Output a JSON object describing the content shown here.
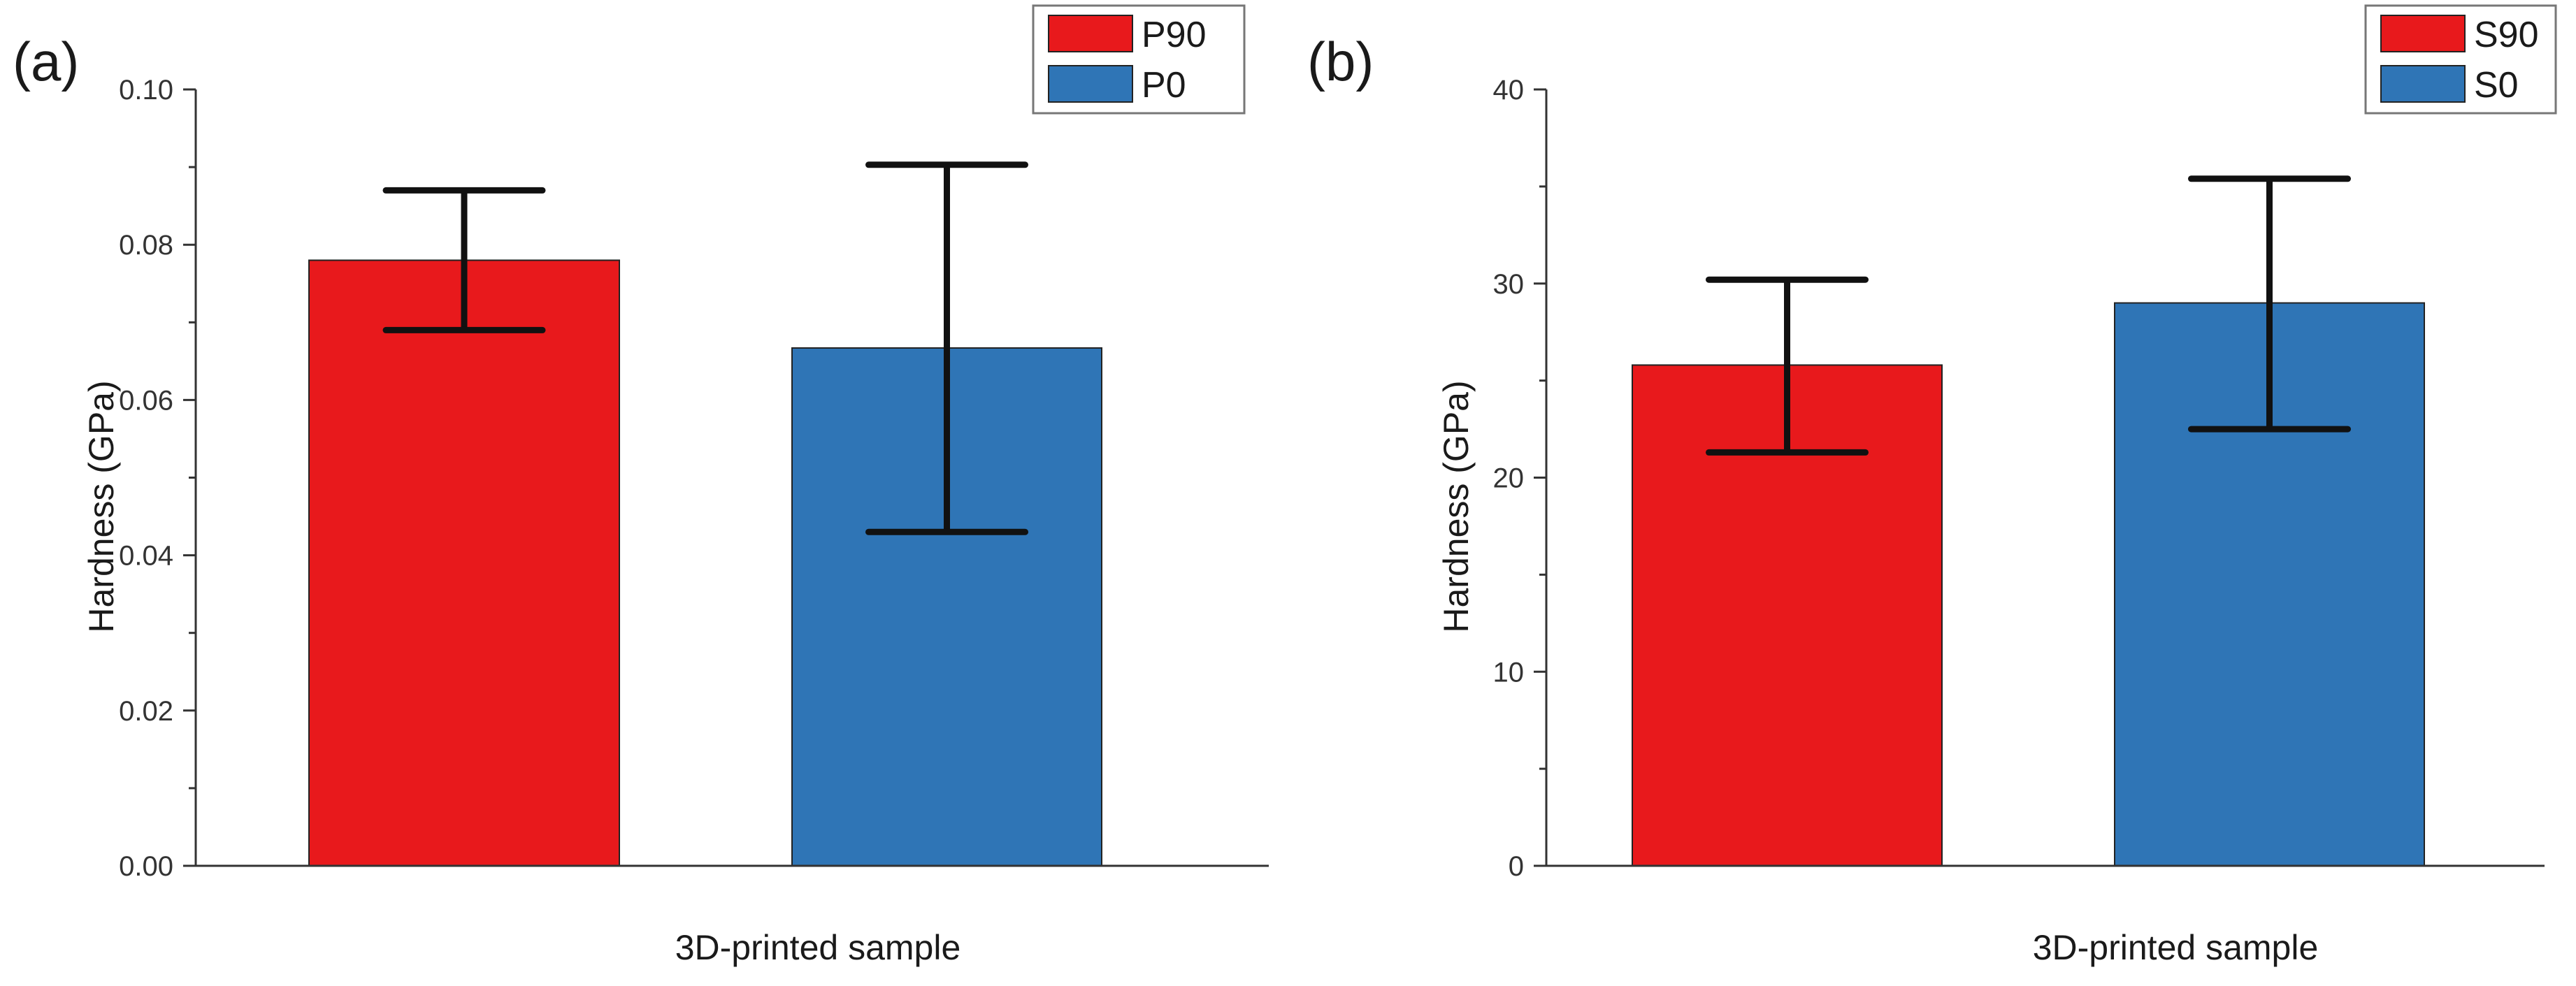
{
  "chart_data": [
    {
      "type": "bar",
      "panel_label": "(a)",
      "xlabel": "3D-printed sample",
      "ylabel": "Hardness (GPa)",
      "ylim": [
        0,
        0.1
      ],
      "yticks": [
        "0.00",
        "0.02",
        "0.04",
        "0.06",
        "0.08",
        "0.10"
      ],
      "legend_position": "top-right",
      "series": [
        {
          "name": "P90",
          "value": 0.078,
          "error_low": 0.069,
          "error_high": 0.087,
          "color": "#e8191c"
        },
        {
          "name": "P0",
          "value": 0.0667,
          "error_low": 0.043,
          "error_high": 0.0903,
          "color": "#2f75b6"
        }
      ]
    },
    {
      "type": "bar",
      "panel_label": "(b)",
      "xlabel": "3D-printed sample",
      "ylabel": "Hardness (GPa)",
      "ylim": [
        0,
        40
      ],
      "yticks": [
        "0",
        "10",
        "20",
        "30",
        "40"
      ],
      "legend_position": "top-right",
      "series": [
        {
          "name": "S90",
          "value": 25.8,
          "error_low": 21.3,
          "error_high": 30.2,
          "color": "#e8191c"
        },
        {
          "name": "S0",
          "value": 29.0,
          "error_low": 22.5,
          "error_high": 35.4,
          "color": "#2f75b6"
        }
      ]
    }
  ]
}
